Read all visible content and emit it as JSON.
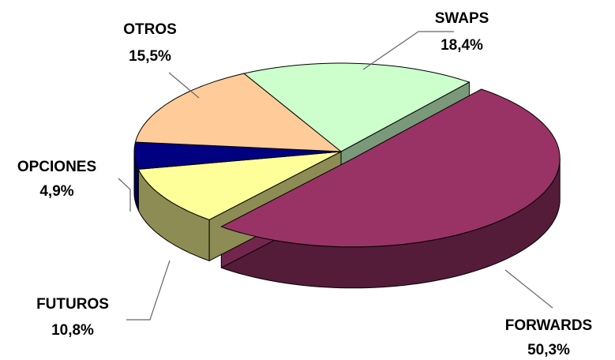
{
  "chart_data": {
    "type": "pie3d",
    "categories": [
      "SWAPS",
      "FORWARDS",
      "FUTUROS",
      "OPCIONES",
      "OTROS"
    ],
    "values": [
      18.4,
      50.3,
      10.8,
      4.9,
      15.5
    ],
    "value_labels": [
      "18,4%",
      "50,3%",
      "10,8%",
      "4,9%",
      "15,5%"
    ],
    "colors": [
      "#ccffcc",
      "#993366",
      "#ffff99",
      "#000080",
      "#ffcc99"
    ],
    "explode": [
      false,
      true,
      false,
      false,
      false
    ]
  }
}
